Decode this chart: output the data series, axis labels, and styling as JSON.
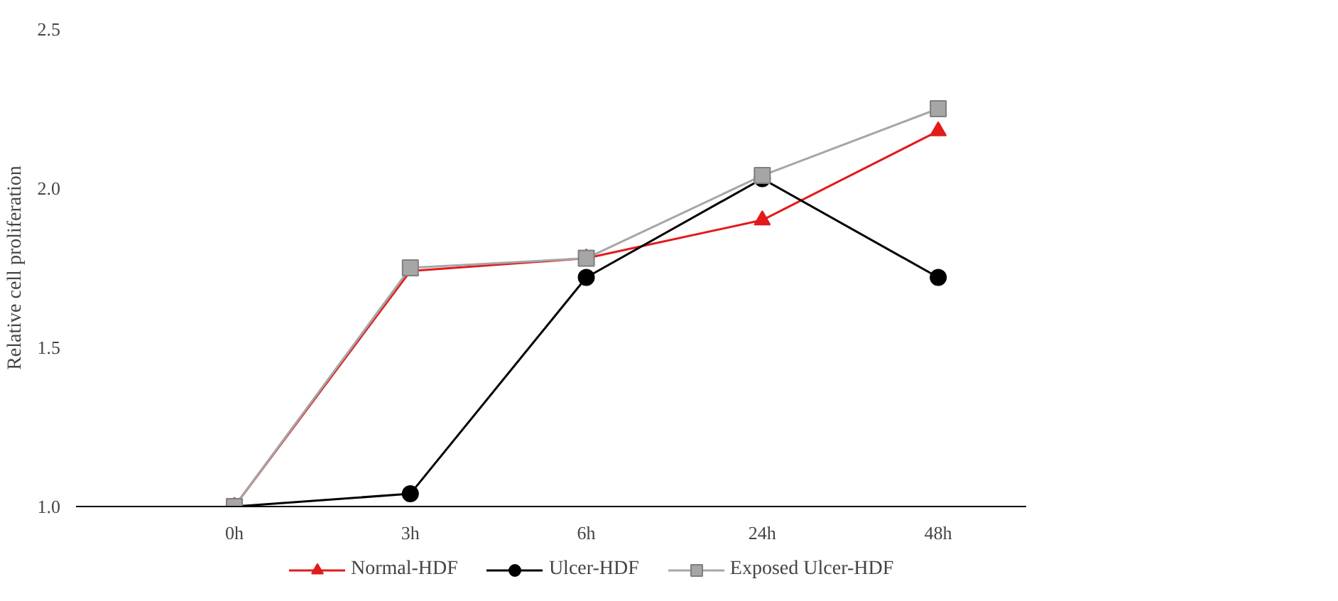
{
  "chart_data": {
    "type": "line",
    "ylabel": "Relative cell proliferation",
    "categories": [
      "0h",
      "3h",
      "6h",
      "24h",
      "48h"
    ],
    "series": [
      {
        "name": "Normal-HDF",
        "color": "#e31a1c",
        "marker": "triangle",
        "values": [
          1.0,
          1.74,
          1.78,
          1.9,
          2.18
        ]
      },
      {
        "name": "Ulcer-HDF",
        "color": "#000000",
        "marker": "circle",
        "values": [
          1.0,
          1.04,
          1.72,
          2.03,
          1.72
        ]
      },
      {
        "name": "Exposed Ulcer-HDF",
        "color": "#a6a6a6",
        "marker": "square",
        "values": [
          1.0,
          1.75,
          1.78,
          2.04,
          2.25
        ]
      }
    ],
    "ylim": [
      1.0,
      2.5
    ],
    "yticks": [
      {
        "value": 1.0,
        "label": "1.0"
      },
      {
        "value": 1.5,
        "label": "1.5"
      },
      {
        "value": 2.0,
        "label": "2.0"
      },
      {
        "value": 2.5,
        "label": "2.5"
      }
    ],
    "grid": false,
    "legend": "bottom"
  }
}
